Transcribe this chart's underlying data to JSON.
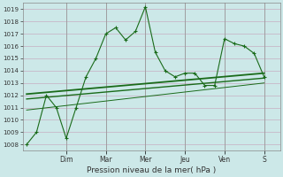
{
  "xlabel": "Pression niveau de la mer( hPa )",
  "background_color": "#cce8e8",
  "plot_bg_color": "#cce8e8",
  "grid_color": "#c8b8c8",
  "line_color": "#1a6b1a",
  "ylim": [
    1007.5,
    1019.5
  ],
  "yticks": [
    1008,
    1009,
    1010,
    1011,
    1012,
    1013,
    1014,
    1015,
    1016,
    1017,
    1018,
    1019
  ],
  "x_day_labels": [
    "Dim",
    "Mar",
    "Mer",
    "Jeu",
    "Ven",
    "S"
  ],
  "x_day_positions": [
    2.0,
    4.0,
    6.0,
    8.0,
    10.0,
    12.0
  ],
  "xlim": [
    -0.2,
    12.8
  ],
  "series1_x": [
    0.0,
    0.5,
    1.0,
    1.5,
    2.0,
    2.5,
    3.0,
    3.5,
    4.0,
    4.5,
    5.0,
    5.5,
    6.0,
    6.5,
    7.0,
    7.5,
    8.0,
    8.5,
    9.0,
    9.5,
    10.0,
    10.5,
    11.0,
    11.5,
    12.0
  ],
  "series1_y": [
    1008.0,
    1009.0,
    1012.0,
    1011.0,
    1008.5,
    1011.0,
    1013.5,
    1015.0,
    1017.0,
    1017.5,
    1016.5,
    1017.2,
    1019.2,
    1015.5,
    1014.0,
    1013.5,
    1013.8,
    1013.8,
    1012.8,
    1012.8,
    1016.6,
    1016.2,
    1016.0,
    1015.4,
    1013.5
  ],
  "series2_x": [
    0.0,
    12.0
  ],
  "series2_y": [
    1012.1,
    1013.8
  ],
  "series3_x": [
    0.0,
    12.0
  ],
  "series3_y": [
    1011.7,
    1013.4
  ],
  "series4_x": [
    0.0,
    12.0
  ],
  "series4_y": [
    1010.8,
    1013.0
  ]
}
